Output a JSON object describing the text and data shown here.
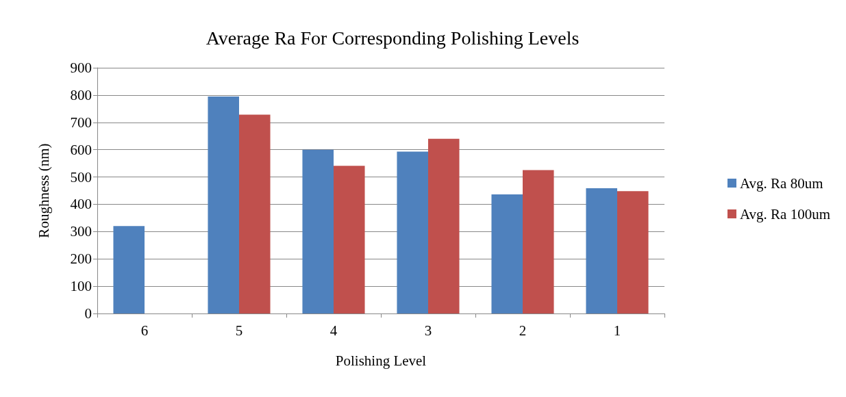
{
  "chart_data": {
    "type": "bar",
    "title": "Average Ra For Corresponding Polishing Levels",
    "xlabel": "Polishing Level",
    "ylabel": "Roughness (nm)",
    "categories": [
      "6",
      "5",
      "4",
      "3",
      "2",
      "1"
    ],
    "series": [
      {
        "name": "Avg. Ra 80um",
        "color": "#4f81bd",
        "values": [
          320,
          795,
          600,
          593,
          436,
          459
        ]
      },
      {
        "name": "Avg. Ra 100um",
        "color": "#c0504d",
        "values": [
          null,
          728,
          541,
          640,
          525,
          448
        ]
      }
    ],
    "ylim": [
      0,
      900
    ],
    "yticks": [
      0,
      100,
      200,
      300,
      400,
      500,
      600,
      700,
      800,
      900
    ],
    "grid": "y",
    "legend": "right"
  }
}
